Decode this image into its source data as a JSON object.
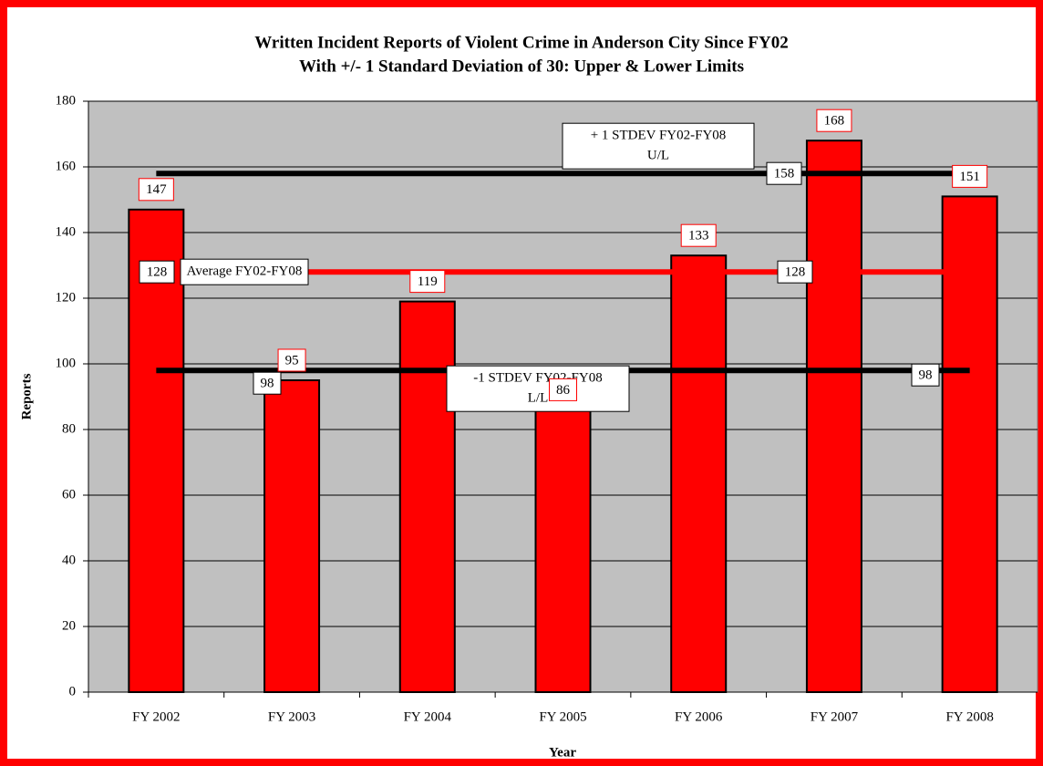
{
  "chart_data": {
    "type": "bar",
    "title": "Written Incident Reports of Violent Crime in Anderson City Since FY02",
    "subtitle": "With +/- 1 Standard Deviation of 30: Upper & Lower Limits",
    "x_label": "Year",
    "y_label": "Reports",
    "categories": [
      "FY 2002",
      "FY 2003",
      "FY 2004",
      "FY 2005",
      "FY 2006",
      "FY 2007",
      "FY 2008"
    ],
    "values": [
      147,
      95,
      119,
      86,
      133,
      168,
      151
    ],
    "color": "#ff0000",
    "ylim": [
      0,
      180
    ],
    "yticks": [
      0,
      20,
      40,
      60,
      80,
      100,
      120,
      140,
      160,
      180
    ],
    "grid": true,
    "reference_lines": [
      {
        "name": [
          "+ 1 STDEV FY02-FY08",
          "U/L"
        ],
        "value": 158,
        "color": "#000000"
      },
      {
        "name": [
          "Average FY02-FY08"
        ],
        "value": 128,
        "color": "#ff0000"
      },
      {
        "name": [
          "-1 STDEV FY02-FY08",
          "L/L"
        ],
        "value": 98,
        "color": "#000000"
      }
    ]
  }
}
